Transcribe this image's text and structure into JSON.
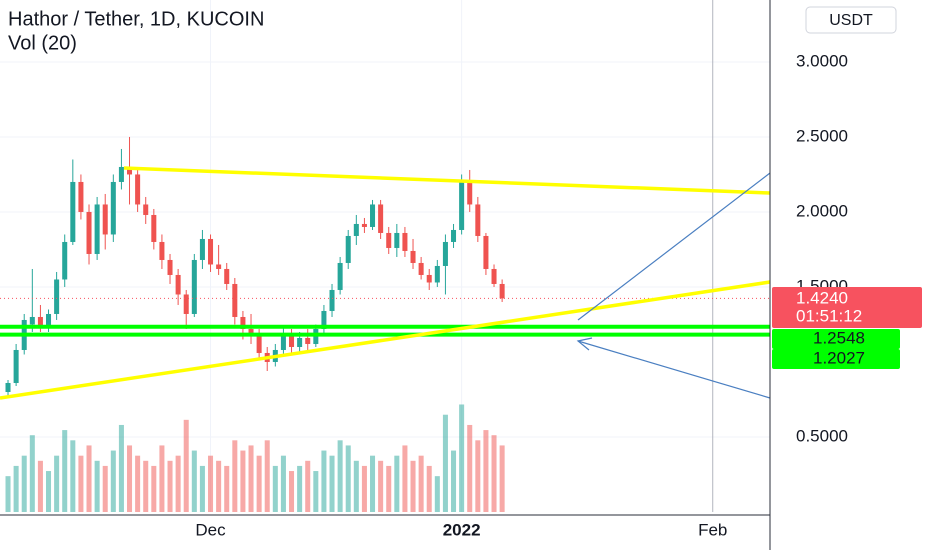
{
  "chart_data": {
    "type": "candlestick",
    "title": "Hathor / Tether, 1D, KUCOIN",
    "subtitle": "Vol (20)",
    "currency": "USDT",
    "countdown": "01:51:12",
    "up_color": "#26a69a",
    "down_color": "#ef5350",
    "grid": true,
    "x": [
      0,
      1,
      2,
      3,
      4,
      5,
      6,
      7,
      8,
      9,
      10,
      11,
      12,
      13,
      14,
      15,
      16,
      17,
      18,
      19,
      20,
      21,
      22,
      23,
      24,
      25,
      26,
      27,
      28,
      29,
      30,
      31,
      32,
      33,
      34,
      35,
      36,
      37,
      38,
      39,
      40,
      41,
      42,
      43,
      44,
      45,
      46,
      47,
      48,
      49,
      50,
      51,
      52,
      53,
      54,
      55,
      56,
      57,
      58,
      59,
      60,
      61
    ],
    "open": [
      0.8,
      0.86,
      1.08,
      1.25,
      1.3,
      1.24,
      1.32,
      1.55,
      1.8,
      2.2,
      2.0,
      1.72,
      2.05,
      1.85,
      2.2,
      2.3,
      2.25,
      2.05,
      1.98,
      1.8,
      1.68,
      1.58,
      1.45,
      1.32,
      1.68,
      1.82,
      1.65,
      1.62,
      1.52,
      1.3,
      1.22,
      1.18,
      1.06,
      1.0,
      1.08,
      1.18,
      1.1,
      1.16,
      1.12,
      1.22,
      1.34,
      1.48,
      1.66,
      1.84,
      1.92,
      1.9,
      2.05,
      1.86,
      1.76,
      1.86,
      1.74,
      1.66,
      1.58,
      1.53,
      1.64,
      1.8,
      1.88,
      2.2,
      2.05,
      1.84,
      1.62,
      1.52
    ],
    "high": [
      0.88,
      1.12,
      1.32,
      1.62,
      1.38,
      1.35,
      1.6,
      1.85,
      2.35,
      2.25,
      2.05,
      2.1,
      2.12,
      2.25,
      2.42,
      2.5,
      2.28,
      2.1,
      2.02,
      1.85,
      1.72,
      1.62,
      1.48,
      1.72,
      1.88,
      1.85,
      1.78,
      1.66,
      1.56,
      1.34,
      1.32,
      1.22,
      1.1,
      1.12,
      1.24,
      1.22,
      1.2,
      1.22,
      1.25,
      1.38,
      1.52,
      1.7,
      1.88,
      1.98,
      1.96,
      2.08,
      2.08,
      1.9,
      1.92,
      1.9,
      1.82,
      1.7,
      1.62,
      1.68,
      1.85,
      1.92,
      2.25,
      2.28,
      2.1,
      1.86,
      1.65,
      1.55
    ],
    "low": [
      0.76,
      0.84,
      1.05,
      1.2,
      1.2,
      1.2,
      1.28,
      1.5,
      1.78,
      1.95,
      1.65,
      1.68,
      1.75,
      1.8,
      2.15,
      2.05,
      2.0,
      1.92,
      1.75,
      1.62,
      1.52,
      1.38,
      1.22,
      1.3,
      1.62,
      1.6,
      1.58,
      1.48,
      1.25,
      1.15,
      1.12,
      1.02,
      0.94,
      0.97,
      1.04,
      1.06,
      1.05,
      1.08,
      1.1,
      1.18,
      1.3,
      1.45,
      1.62,
      1.78,
      1.86,
      1.88,
      1.82,
      1.72,
      1.7,
      1.7,
      1.62,
      1.55,
      1.48,
      1.5,
      1.45,
      1.76,
      1.85,
      2.0,
      1.8,
      1.58,
      1.5,
      1.4
    ],
    "close": [
      0.86,
      1.08,
      1.28,
      1.3,
      1.24,
      1.32,
      1.55,
      1.8,
      2.2,
      2.0,
      1.72,
      2.05,
      1.85,
      2.2,
      2.3,
      2.25,
      2.05,
      1.98,
      1.8,
      1.68,
      1.58,
      1.45,
      1.32,
      1.68,
      1.82,
      1.65,
      1.62,
      1.52,
      1.3,
      1.22,
      1.18,
      1.06,
      1.0,
      1.08,
      1.18,
      1.1,
      1.16,
      1.12,
      1.22,
      1.34,
      1.48,
      1.66,
      1.84,
      1.92,
      1.9,
      2.05,
      1.86,
      1.76,
      1.86,
      1.74,
      1.66,
      1.58,
      1.53,
      1.64,
      1.8,
      1.88,
      2.2,
      2.05,
      1.84,
      1.62,
      1.52,
      1.424
    ],
    "volume": [
      35,
      45,
      55,
      75,
      50,
      40,
      55,
      80,
      70,
      55,
      65,
      50,
      45,
      60,
      85,
      65,
      55,
      50,
      45,
      65,
      50,
      55,
      90,
      60,
      45,
      55,
      50,
      45,
      70,
      60,
      65,
      55,
      70,
      45,
      55,
      40,
      45,
      50,
      40,
      60,
      55,
      70,
      65,
      50,
      45,
      55,
      50,
      45,
      55,
      65,
      50,
      55,
      45,
      35,
      95,
      60,
      105,
      85,
      70,
      80,
      75,
      65
    ],
    "volume_lim": [
      0,
      500
    ],
    "xlim": [
      -0.99,
      94.07
    ],
    "xticks": [
      {
        "value": 25,
        "label": "Dec"
      },
      {
        "value": 56,
        "label": "2022"
      },
      {
        "value": 87,
        "label": "Feb"
      }
    ],
    "ylim": [
      0,
      3.413
    ],
    "yticks": [
      {
        "value": 0.5,
        "label": "0.5000"
      },
      {
        "value": 1.5,
        "label": "1.5000"
      },
      {
        "value": 2,
        "label": "2.0000"
      },
      {
        "value": 2.5,
        "label": "2.5000"
      },
      {
        "value": 3,
        "label": "3.0000"
      }
    ],
    "price_labels": [
      {
        "value": 1.424,
        "label": "1.4240",
        "color": "#f7525f"
      },
      {
        "value": 1.2548,
        "label": "1.2548",
        "color": "#00ff00"
      },
      {
        "value": 1.2027,
        "label": "1.2027",
        "color": "#00ff00"
      }
    ]
  }
}
